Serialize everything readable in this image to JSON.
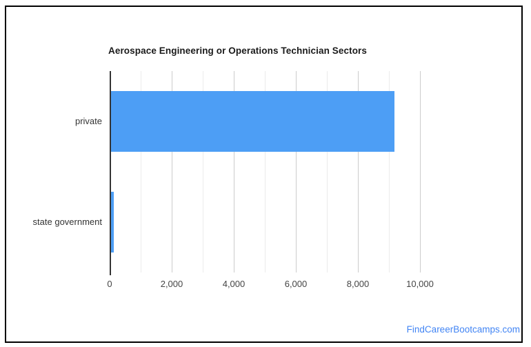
{
  "chart_data": {
    "type": "bar",
    "orientation": "horizontal",
    "title": "Aerospace Engineering or Operations Technician Sectors",
    "categories": [
      "private",
      "state government"
    ],
    "values": [
      9130,
      80
    ],
    "xlabel": "",
    "ylabel": "",
    "xlim": [
      0,
      10000
    ],
    "x_ticks": [
      0,
      2000,
      4000,
      6000,
      8000,
      10000
    ],
    "x_tick_labels": [
      "0",
      "2,000",
      "4,000",
      "6,000",
      "8,000",
      "10,000"
    ],
    "minor_ticks": [
      1000,
      3000,
      5000,
      7000,
      9000
    ],
    "grid": true,
    "legend": "none",
    "colors": {
      "bar": "#4d9ef5",
      "major_grid": "#cccccc",
      "minor_grid": "#ebebeb",
      "axis": "#333333",
      "title_text": "#1a1a1a",
      "tick_text": "#444444"
    }
  },
  "footer": {
    "link_label": "FindCareerBootcamps.com",
    "link_color": "#4285f4"
  }
}
